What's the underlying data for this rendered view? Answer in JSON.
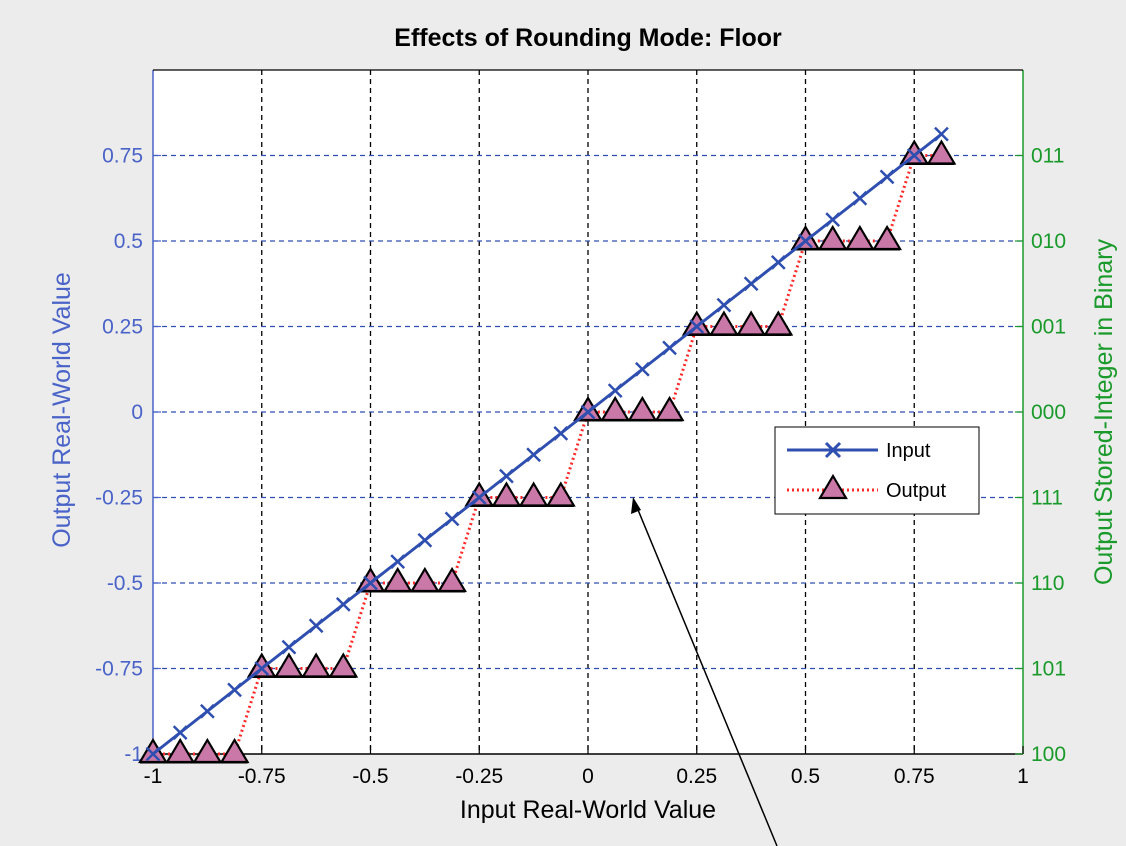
{
  "chart_data": {
    "type": "line",
    "title": "Effects of Rounding Mode: Floor",
    "xlabel": "Input Real-World Value",
    "ylabel": "Output Real-World Value",
    "y2label": "Output Stored-Integer in Binary",
    "xlim": [
      -1,
      1
    ],
    "ylim": [
      -1,
      1
    ],
    "grid": true,
    "legend_position": "center-right",
    "x_ticks": [
      "-1",
      "-0.75",
      "-0.5",
      "-0.25",
      "0",
      "0.25",
      "0.5",
      "0.75",
      "1"
    ],
    "x_tick_values": [
      -1,
      -0.75,
      -0.5,
      -0.25,
      0,
      0.25,
      0.5,
      0.75,
      1
    ],
    "y_ticks": [
      "-1",
      "-0.75",
      "-0.5",
      "-0.25",
      "0",
      "0.25",
      "0.5",
      "0.75"
    ],
    "y_tick_values": [
      -1,
      -0.75,
      -0.5,
      -0.25,
      0,
      0.25,
      0.5,
      0.75
    ],
    "y2_ticks": [
      "100",
      "101",
      "110",
      "111",
      "000",
      "001",
      "010",
      "011"
    ],
    "colors": {
      "left_axis": "#4a63c8",
      "right_axis": "#1a9a2a",
      "input": "#2f4fb0",
      "output_line": "#ff2a2a",
      "output_marker": "#c978a8",
      "grid_x": "#000000",
      "grid_y": "#2f4fb0"
    },
    "series": [
      {
        "name": "Input",
        "marker": "x",
        "x": [
          -1,
          -0.9375,
          -0.875,
          -0.8125,
          -0.75,
          -0.6875,
          -0.625,
          -0.5625,
          -0.5,
          -0.4375,
          -0.375,
          -0.3125,
          -0.25,
          -0.1875,
          -0.125,
          -0.0625,
          0,
          0.0625,
          0.125,
          0.1875,
          0.25,
          0.3125,
          0.375,
          0.4375,
          0.5,
          0.5625,
          0.625,
          0.6875,
          0.75,
          0.8125
        ],
        "y": [
          -1,
          -0.9375,
          -0.875,
          -0.8125,
          -0.75,
          -0.6875,
          -0.625,
          -0.5625,
          -0.5,
          -0.4375,
          -0.375,
          -0.3125,
          -0.25,
          -0.1875,
          -0.125,
          -0.0625,
          0,
          0.0625,
          0.125,
          0.1875,
          0.25,
          0.3125,
          0.375,
          0.4375,
          0.5,
          0.5625,
          0.625,
          0.6875,
          0.75,
          0.8125
        ]
      },
      {
        "name": "Output",
        "marker": "triangle",
        "x": [
          -1,
          -0.9375,
          -0.875,
          -0.8125,
          -0.75,
          -0.6875,
          -0.625,
          -0.5625,
          -0.5,
          -0.4375,
          -0.375,
          -0.3125,
          -0.25,
          -0.1875,
          -0.125,
          -0.0625,
          0,
          0.0625,
          0.125,
          0.1875,
          0.25,
          0.3125,
          0.375,
          0.4375,
          0.5,
          0.5625,
          0.625,
          0.6875,
          0.75,
          0.8125
        ],
        "y": [
          -1,
          -1,
          -1,
          -1,
          -0.75,
          -0.75,
          -0.75,
          -0.75,
          -0.5,
          -0.5,
          -0.5,
          -0.5,
          -0.25,
          -0.25,
          -0.25,
          -0.25,
          0,
          0,
          0,
          0,
          0.25,
          0.25,
          0.25,
          0.25,
          0.5,
          0.5,
          0.5,
          0.5,
          0.75,
          0.75
        ]
      }
    ]
  }
}
